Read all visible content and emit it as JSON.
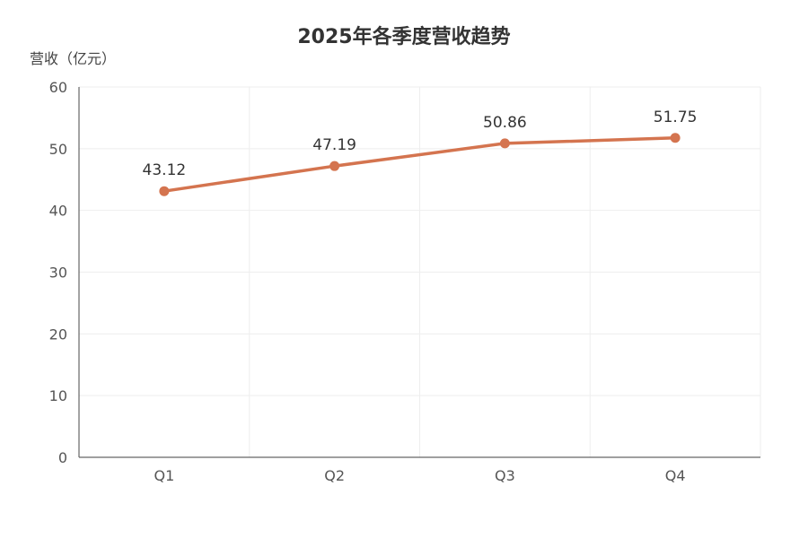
{
  "chart_data": {
    "type": "line",
    "title": "2025年各季度营收趋势",
    "ylabel": "营收（亿元）",
    "xlabel": "",
    "categories": [
      "Q1",
      "Q2",
      "Q3",
      "Q4"
    ],
    "series": [
      {
        "values": [
          43.12,
          47.19,
          50.86,
          51.75
        ],
        "color": "#d4744f"
      }
    ],
    "ylim": [
      0,
      60
    ],
    "yticks": [
      0,
      10,
      20,
      30,
      40,
      50,
      60
    ],
    "grid": true,
    "data_labels": true
  }
}
